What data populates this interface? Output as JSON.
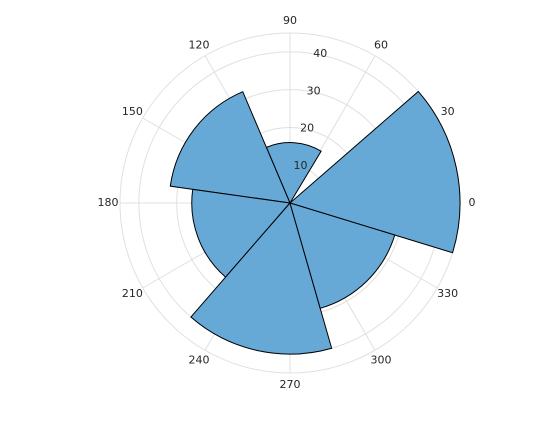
{
  "chart_data": {
    "type": "polar-histogram",
    "bins": [
      -17,
      41,
      59,
      113,
      172,
      229,
      286,
      343
    ],
    "counts": [
      45,
      0,
      16,
      32,
      26,
      40,
      29
    ],
    "color": "#66a9d7",
    "edgecolor": "#000000",
    "rlim": [
      0,
      45
    ],
    "rticks": [
      10,
      20,
      30,
      40
    ],
    "thetaticks": [
      0,
      30,
      60,
      90,
      120,
      150,
      180,
      210,
      240,
      270,
      300,
      330
    ],
    "grid": true
  }
}
